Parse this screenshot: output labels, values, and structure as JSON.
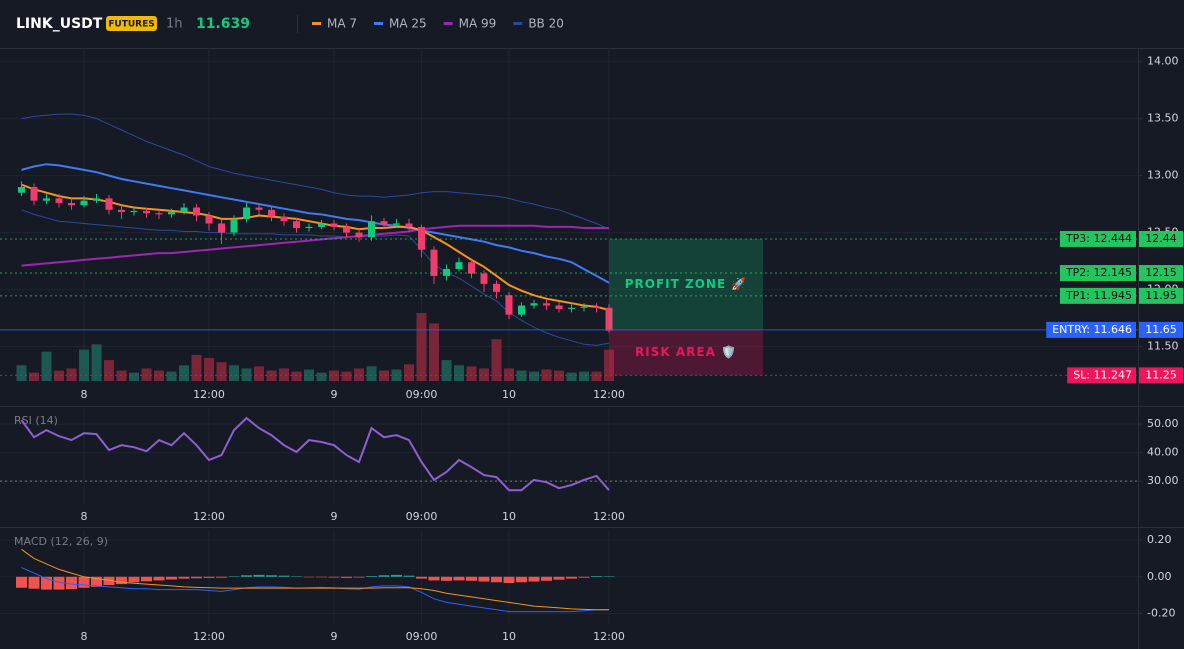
{
  "header": {
    "symbol": "LINK_USDT",
    "badge": "FUTURES",
    "interval": "1h",
    "last_price": 11.639
  },
  "chart_data": [
    {
      "type": "candlestick",
      "categories": [
        null,
        null,
        null,
        null,
        null,
        "8",
        null,
        null,
        null,
        null,
        null,
        null,
        null,
        null,
        null,
        "12:00",
        null,
        null,
        null,
        null,
        null,
        null,
        null,
        null,
        null,
        "9",
        null,
        null,
        null,
        null,
        null,
        null,
        "09:00",
        null,
        null,
        null,
        null,
        null,
        null,
        "10",
        null,
        null,
        null,
        null,
        null,
        null,
        null,
        "12:00"
      ],
      "open": [
        12.85,
        12.9,
        12.78,
        12.8,
        12.76,
        12.74,
        12.78,
        12.8,
        12.7,
        12.68,
        12.69,
        12.67,
        12.66,
        12.68,
        12.72,
        12.65,
        12.58,
        12.5,
        12.62,
        12.72,
        12.7,
        12.64,
        12.6,
        12.54,
        12.55,
        12.58,
        12.55,
        12.5,
        12.46,
        12.6,
        12.57,
        12.58,
        12.55,
        12.35,
        12.12,
        12.18,
        12.24,
        12.14,
        12.05,
        11.95,
        11.78,
        11.86,
        11.88,
        11.86,
        11.83,
        11.84,
        11.85,
        11.84
      ],
      "high": [
        12.95,
        12.93,
        12.84,
        12.84,
        12.8,
        12.82,
        12.84,
        12.83,
        12.74,
        12.72,
        12.72,
        12.7,
        12.71,
        12.76,
        12.75,
        12.68,
        12.62,
        12.65,
        12.76,
        12.76,
        12.73,
        12.67,
        12.63,
        12.58,
        12.61,
        12.61,
        12.58,
        12.53,
        12.65,
        12.63,
        12.62,
        12.62,
        12.57,
        12.38,
        12.22,
        12.28,
        12.26,
        12.17,
        12.08,
        11.98,
        11.89,
        11.91,
        11.91,
        11.89,
        11.87,
        11.88,
        11.88,
        11.87
      ],
      "low": [
        12.82,
        12.74,
        12.75,
        12.72,
        12.7,
        12.72,
        12.76,
        12.66,
        12.62,
        12.65,
        12.63,
        12.62,
        12.63,
        12.66,
        12.6,
        12.52,
        12.4,
        12.47,
        12.59,
        12.66,
        12.6,
        12.56,
        12.5,
        12.51,
        12.53,
        12.52,
        12.46,
        12.42,
        12.43,
        12.53,
        12.54,
        12.51,
        12.28,
        12.05,
        12.08,
        12.16,
        12.1,
        11.98,
        11.92,
        11.74,
        11.76,
        11.83,
        11.82,
        11.8,
        11.8,
        11.81,
        11.8,
        11.62
      ],
      "close": [
        12.9,
        12.78,
        12.8,
        12.76,
        12.74,
        12.78,
        12.8,
        12.7,
        12.68,
        12.69,
        12.67,
        12.66,
        12.68,
        12.72,
        12.65,
        12.58,
        12.5,
        12.62,
        12.72,
        12.7,
        12.64,
        12.6,
        12.54,
        12.55,
        12.58,
        12.55,
        12.5,
        12.46,
        12.6,
        12.57,
        12.58,
        12.55,
        12.35,
        12.12,
        12.18,
        12.24,
        12.14,
        12.05,
        11.98,
        11.78,
        11.86,
        11.88,
        11.86,
        11.83,
        11.84,
        11.85,
        11.84,
        11.639
      ],
      "volume": [
        15,
        8,
        28,
        10,
        12,
        30,
        35,
        20,
        10,
        8,
        12,
        10,
        9,
        15,
        25,
        22,
        18,
        15,
        12,
        14,
        10,
        12,
        9,
        11,
        8,
        10,
        9,
        12,
        14,
        10,
        11,
        16,
        65,
        55,
        20,
        15,
        14,
        12,
        40,
        12,
        10,
        9,
        11,
        10,
        8,
        9,
        9,
        30
      ],
      "up_color": "#0ecb81",
      "down_color": "#f23c6e",
      "volume_up_color": "#1c5953",
      "volume_down_color": "#7a2638",
      "series": [
        {
          "name": "MA 7",
          "color": "#f7931a",
          "values": [
            12.92,
            12.88,
            12.85,
            12.82,
            12.8,
            12.8,
            12.79,
            12.77,
            12.74,
            12.72,
            12.71,
            12.7,
            12.69,
            12.68,
            12.67,
            12.65,
            12.62,
            12.62,
            12.63,
            12.65,
            12.64,
            12.63,
            12.62,
            12.6,
            12.58,
            12.56,
            12.55,
            12.53,
            12.54,
            12.54,
            12.55,
            12.55,
            12.52,
            12.46,
            12.4,
            12.33,
            12.26,
            12.2,
            12.12,
            12.04,
            11.99,
            11.95,
            11.92,
            11.9,
            11.88,
            11.86,
            11.85,
            11.82
          ]
        },
        {
          "name": "MA 25",
          "color": "#3d7bf5",
          "values": [
            13.05,
            13.08,
            13.1,
            13.09,
            13.07,
            13.05,
            13.03,
            13.0,
            12.97,
            12.95,
            12.93,
            12.91,
            12.89,
            12.87,
            12.85,
            12.83,
            12.81,
            12.79,
            12.77,
            12.75,
            12.73,
            12.71,
            12.69,
            12.67,
            12.66,
            12.64,
            12.62,
            12.61,
            12.59,
            12.57,
            12.56,
            12.54,
            12.52,
            12.5,
            12.48,
            12.46,
            12.44,
            12.42,
            12.39,
            12.37,
            12.34,
            12.32,
            12.29,
            12.27,
            12.24,
            12.18,
            12.12,
            12.06
          ]
        },
        {
          "name": "MA 99",
          "color": "#9c27b0",
          "values": [
            12.21,
            12.22,
            12.23,
            12.24,
            12.25,
            12.26,
            12.27,
            12.28,
            12.29,
            12.3,
            12.31,
            12.32,
            12.32,
            12.33,
            12.34,
            12.35,
            12.36,
            12.37,
            12.38,
            12.39,
            12.4,
            12.41,
            12.42,
            12.43,
            12.44,
            12.45,
            12.46,
            12.47,
            12.48,
            12.49,
            12.5,
            12.51,
            12.53,
            12.54,
            12.55,
            12.56,
            12.56,
            12.56,
            12.56,
            12.56,
            12.56,
            12.56,
            12.55,
            12.55,
            12.55,
            12.54,
            12.54,
            12.54
          ]
        },
        {
          "name": "BB 20",
          "color": "#2b4a9e",
          "upper": [
            13.5,
            13.52,
            13.53,
            13.54,
            13.54,
            13.53,
            13.5,
            13.45,
            13.4,
            13.35,
            13.3,
            13.26,
            13.22,
            13.18,
            13.13,
            13.08,
            13.05,
            13.02,
            13.0,
            12.98,
            12.96,
            12.94,
            12.92,
            12.9,
            12.88,
            12.85,
            12.83,
            12.82,
            12.82,
            12.81,
            12.82,
            12.83,
            12.85,
            12.86,
            12.86,
            12.85,
            12.84,
            12.83,
            12.82,
            12.8,
            12.77,
            12.75,
            12.72,
            12.7,
            12.66,
            12.62,
            12.58,
            12.53
          ],
          "lower": [
            12.7,
            12.66,
            12.63,
            12.6,
            12.59,
            12.58,
            12.57,
            12.56,
            12.55,
            12.54,
            12.53,
            12.52,
            12.52,
            12.51,
            12.51,
            12.5,
            12.5,
            12.49,
            12.49,
            12.49,
            12.49,
            12.48,
            12.48,
            12.48,
            12.47,
            12.47,
            12.46,
            12.46,
            12.47,
            12.47,
            12.48,
            12.47,
            12.35,
            12.22,
            12.15,
            12.1,
            12.03,
            11.96,
            11.9,
            11.8,
            11.73,
            11.67,
            11.62,
            11.58,
            11.55,
            11.52,
            11.51,
            11.53
          ]
        }
      ],
      "ylim": [
        11.18,
        14.12
      ],
      "yticks": [
        {
          "value": 14,
          "label": "14.00"
        },
        {
          "value": 13.5,
          "label": "13.50"
        },
        {
          "value": 13,
          "label": "13.00"
        },
        {
          "value": 12.5,
          "label": "12.50"
        },
        {
          "value": 12,
          "label": "12.00"
        },
        {
          "value": 11.5,
          "label": "11.50"
        }
      ],
      "grid": true,
      "take_profits": [
        {
          "value": 11.945,
          "label": "TP1: 11.945",
          "axis_label": "11.95",
          "color": "#22c55e",
          "text_color": "#0b0e14"
        },
        {
          "value": 12.145,
          "label": "TP2: 12.145",
          "axis_label": "12.15",
          "color": "#22c55e",
          "text_color": "#0b0e14"
        },
        {
          "value": 12.444,
          "label": "TP3: 12.444",
          "axis_label": "12.44",
          "color": "#22c55e",
          "text_color": "#0b0e14"
        }
      ],
      "entry": {
        "value": 11.646,
        "label": "ENTRY: 11.646",
        "axis_label": "11.65",
        "color": "#2962ff",
        "text_color": "#ffffff"
      },
      "stop_loss": {
        "value": 11.247,
        "label": "SL: 11.247",
        "axis_label": "11.25",
        "color": "#f0145a",
        "text_color": "#ffffff"
      },
      "profit_zone": {
        "label": "PROFIT ZONE 🚀",
        "color": "#0ecb81"
      },
      "risk_area": {
        "label": "RISK AREA 🛡️",
        "color": "#f0145a"
      }
    },
    {
      "type": "line",
      "title": "RSI (14)",
      "color": "#8e5fd0",
      "categories": [
        null,
        null,
        null,
        null,
        null,
        "8",
        null,
        null,
        null,
        null,
        null,
        null,
        null,
        null,
        null,
        "12:00",
        null,
        null,
        null,
        null,
        null,
        null,
        null,
        null,
        null,
        "9",
        null,
        null,
        null,
        null,
        null,
        null,
        "09:00",
        null,
        null,
        null,
        null,
        null,
        null,
        "10",
        null,
        null,
        null,
        null,
        null,
        null,
        null,
        "12:00"
      ],
      "values": [
        51.4,
        45.4,
        47.9,
        45.8,
        44.4,
        46.8,
        46.5,
        40.9,
        42.6,
        41.9,
        40.5,
        44.4,
        42.6,
        46.8,
        42.6,
        37.4,
        39.1,
        47.9,
        52.1,
        48.6,
        46.1,
        42.6,
        40.2,
        44.4,
        43.7,
        42.6,
        39.1,
        36.7,
        48.6,
        45.4,
        46.1,
        44.4,
        36.7,
        30.4,
        33.2,
        37.4,
        34.9,
        32.1,
        31.4,
        26.8,
        26.8,
        30.4,
        29.6,
        27.5,
        28.6,
        30.4,
        31.8,
        26.8
      ],
      "ylim": [
        21.6,
        55.3
      ],
      "yticks": [
        {
          "value": 50,
          "label": "50.00"
        },
        {
          "value": 40,
          "label": "40.00"
        },
        {
          "value": 30,
          "label": "30.00"
        }
      ],
      "reference_line": 30,
      "grid": true
    },
    {
      "type": "macd",
      "title": "MACD (12, 26, 9)",
      "categories": [
        null,
        null,
        null,
        null,
        null,
        "8",
        null,
        null,
        null,
        null,
        null,
        null,
        null,
        null,
        null,
        "12:00",
        null,
        null,
        null,
        null,
        null,
        null,
        null,
        null,
        null,
        "9",
        null,
        null,
        null,
        null,
        null,
        null,
        "09:00",
        null,
        null,
        null,
        null,
        null,
        null,
        "10",
        null,
        null,
        null,
        null,
        null,
        null,
        null,
        "12:00"
      ],
      "histogram": [
        -0.06,
        -0.065,
        -0.07,
        -0.07,
        -0.068,
        -0.06,
        -0.055,
        -0.045,
        -0.04,
        -0.03,
        -0.025,
        -0.02,
        -0.015,
        -0.01,
        -0.008,
        -0.006,
        -0.005,
        0.002,
        0.008,
        0.01,
        0.008,
        0.006,
        0.002,
        -0.002,
        -0.003,
        -0.004,
        -0.006,
        -0.004,
        0.004,
        0.008,
        0.01,
        0.006,
        -0.01,
        -0.02,
        -0.022,
        -0.02,
        -0.022,
        -0.026,
        -0.03,
        -0.034,
        -0.03,
        -0.026,
        -0.022,
        -0.016,
        -0.01,
        -0.005,
        0.004,
        0.002
      ],
      "positive_color": "#26a69a",
      "negative_color": "#ef5350",
      "series": [
        {
          "color": "#2962ff",
          "values": [
            0.05,
            0.02,
            -0.01,
            -0.03,
            -0.04,
            -0.045,
            -0.05,
            -0.055,
            -0.06,
            -0.065,
            -0.065,
            -0.07,
            -0.07,
            -0.07,
            -0.07,
            -0.075,
            -0.08,
            -0.07,
            -0.06,
            -0.055,
            -0.055,
            -0.058,
            -0.062,
            -0.06,
            -0.058,
            -0.06,
            -0.065,
            -0.068,
            -0.055,
            -0.05,
            -0.05,
            -0.055,
            -0.085,
            -0.12,
            -0.14,
            -0.15,
            -0.16,
            -0.17,
            -0.18,
            -0.19,
            -0.19,
            -0.19,
            -0.19,
            -0.19,
            -0.19,
            -0.185,
            -0.18,
            -0.18
          ]
        },
        {
          "color": "#f7931a",
          "values": [
            0.15,
            0.1,
            0.07,
            0.04,
            0.02,
            0.0,
            -0.01,
            -0.02,
            -0.03,
            -0.035,
            -0.04,
            -0.045,
            -0.05,
            -0.055,
            -0.058,
            -0.06,
            -0.062,
            -0.062,
            -0.062,
            -0.062,
            -0.062,
            -0.062,
            -0.062,
            -0.062,
            -0.062,
            -0.062,
            -0.062,
            -0.062,
            -0.062,
            -0.06,
            -0.06,
            -0.06,
            -0.065,
            -0.075,
            -0.09,
            -0.1,
            -0.11,
            -0.12,
            -0.13,
            -0.14,
            -0.15,
            -0.16,
            -0.165,
            -0.17,
            -0.175,
            -0.178,
            -0.18,
            -0.18
          ]
        }
      ],
      "ylim": [
        -0.263,
        0.255
      ],
      "yticks": [
        {
          "value": 0.2,
          "label": "0.20"
        },
        {
          "value": 0,
          "label": "0.00"
        },
        {
          "value": -0.2,
          "label": "-0.20"
        }
      ],
      "grid": true
    }
  ]
}
